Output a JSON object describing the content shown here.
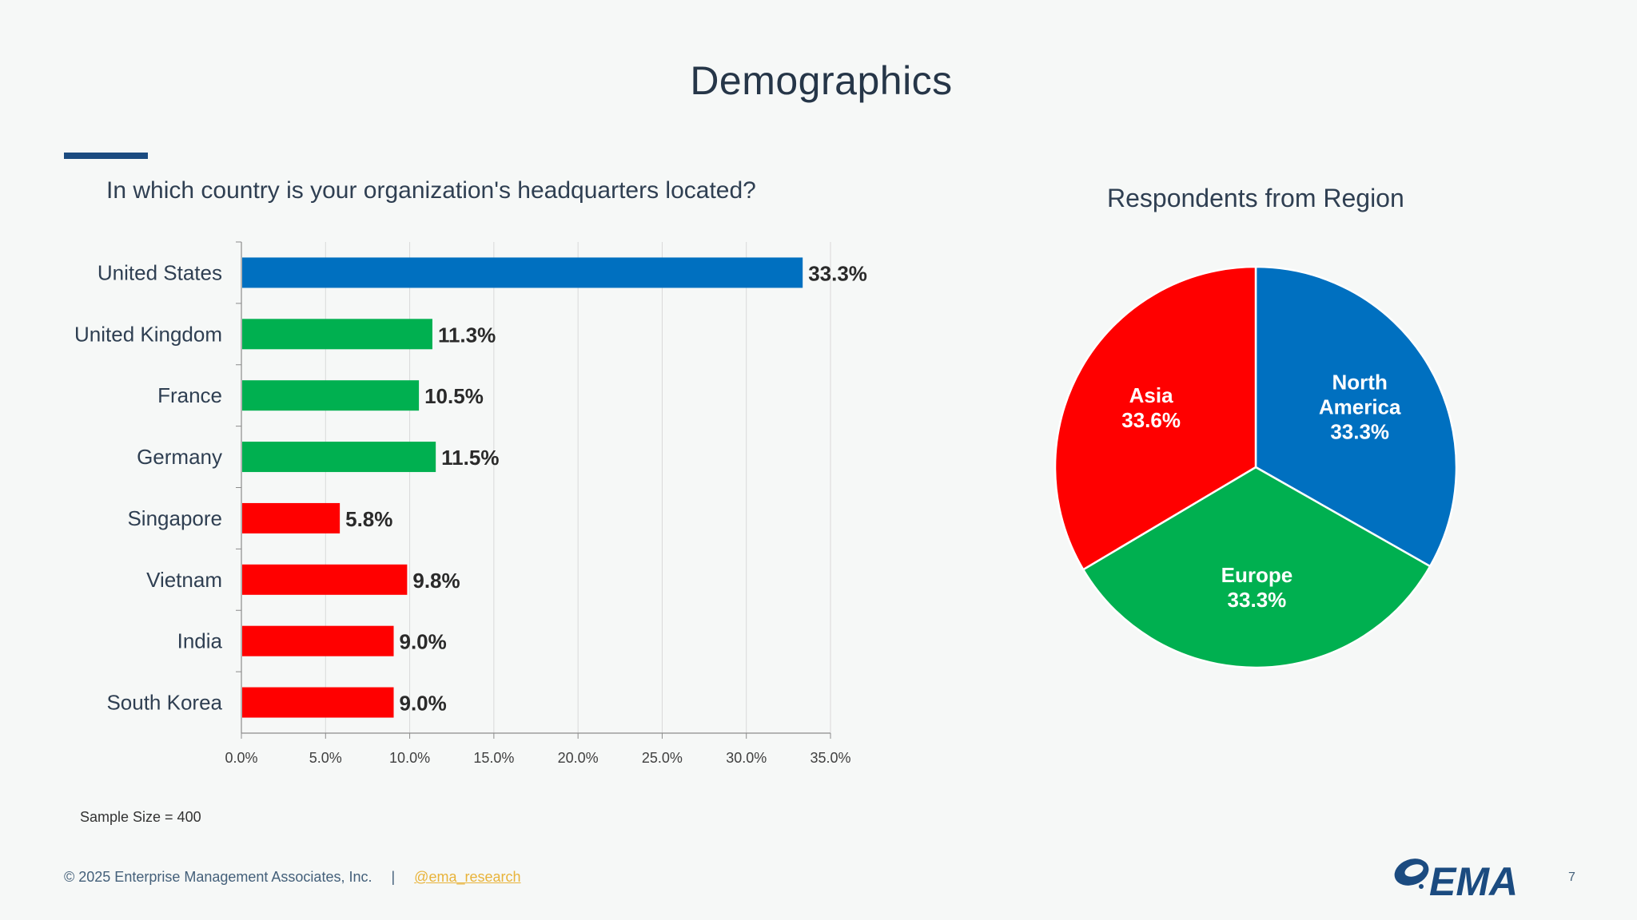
{
  "slide": {
    "title": "Demographics",
    "sample_size": "Sample Size = 400",
    "copyright": "© 2025 Enterprise Management Associates, Inc.",
    "separator": "|",
    "handle": "@ema_research",
    "page_number": "7",
    "logo_text": "EMA",
    "logo_icon": "ema-swoosh-icon"
  },
  "colors": {
    "north_america": "#0070c0",
    "europe": "#00b050",
    "asia": "#ff0000",
    "accent_bar": "#1b4b80",
    "logo": "#1b4b80"
  },
  "chart_data": [
    {
      "type": "bar",
      "orientation": "horizontal",
      "title": "In which country is your organization's headquarters located?",
      "categories": [
        "United States",
        "United Kingdom",
        "France",
        "Germany",
        "Singapore",
        "Vietnam",
        "India",
        "South Korea"
      ],
      "values": [
        33.3,
        11.3,
        10.5,
        11.5,
        5.8,
        9.8,
        9.0,
        9.0
      ],
      "data_labels": [
        "33.3%",
        "11.3%",
        "10.5%",
        "11.5%",
        "5.8%",
        "9.8%",
        "9.0%",
        "9.0%"
      ],
      "bar_colors": [
        "#0070c0",
        "#00b050",
        "#00b050",
        "#00b050",
        "#ff0000",
        "#ff0000",
        "#ff0000",
        "#ff0000"
      ],
      "xlim": [
        0,
        35
      ],
      "xticks": [
        "0.0%",
        "5.0%",
        "10.0%",
        "15.0%",
        "20.0%",
        "25.0%",
        "30.0%",
        "35.0%"
      ],
      "grid": "vertical"
    },
    {
      "type": "pie",
      "title": "Respondents from Region",
      "slices": [
        {
          "label": "North America",
          "value": 33.3,
          "value_label": "33.3%",
          "color": "#0070c0"
        },
        {
          "label": "Europe",
          "value": 33.3,
          "value_label": "33.3%",
          "color": "#00b050"
        },
        {
          "label": "Asia",
          "value": 33.6,
          "value_label": "33.6%",
          "color": "#ff0000"
        }
      ]
    }
  ]
}
